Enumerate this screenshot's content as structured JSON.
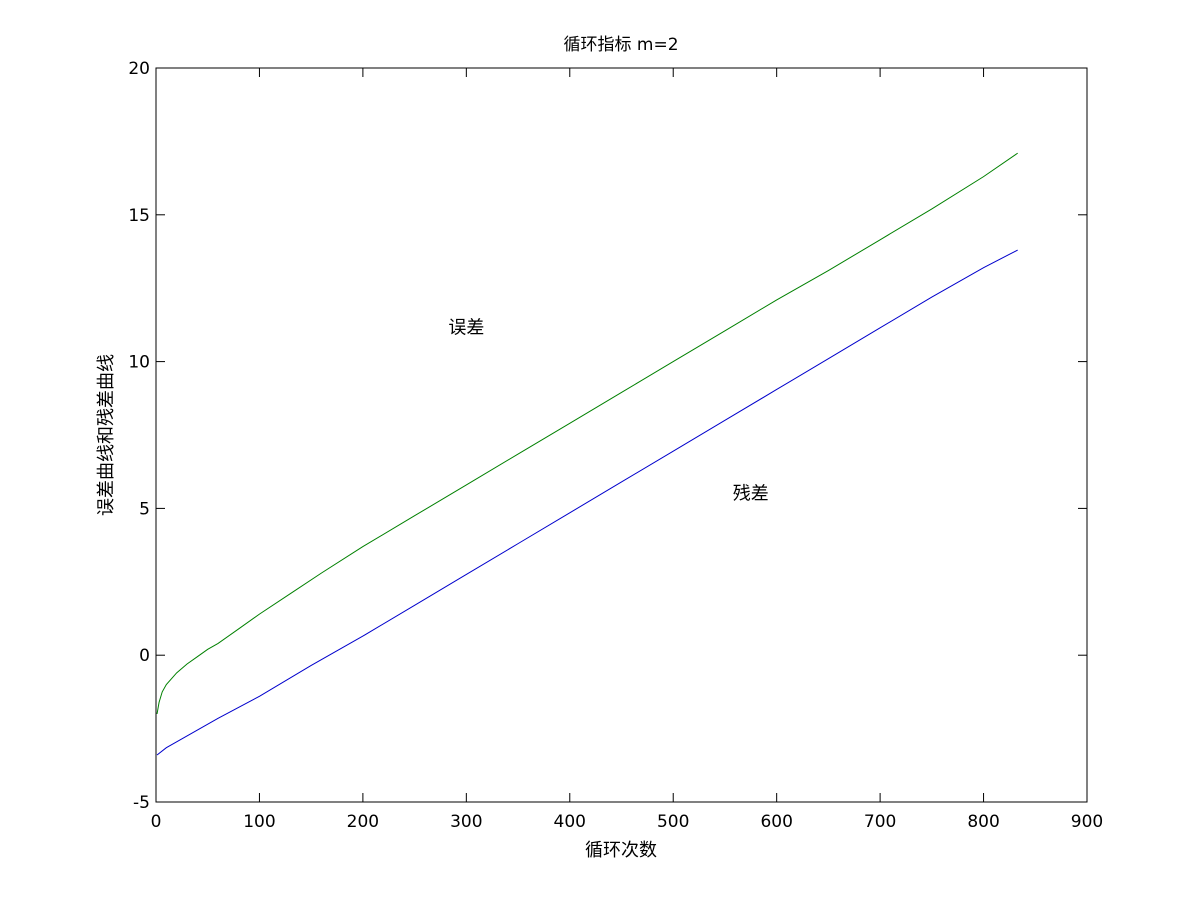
{
  "chart_data": {
    "type": "line",
    "title": "循环指标 m=2",
    "xlabel": "循环次数",
    "ylabel": "误差曲线和残差曲线",
    "xlim": [
      0,
      900
    ],
    "ylim": [
      -5,
      20
    ],
    "xticks": [
      0,
      100,
      200,
      300,
      400,
      500,
      600,
      700,
      800,
      900
    ],
    "yticks": [
      -5,
      0,
      5,
      10,
      15,
      20
    ],
    "grid": false,
    "legend": "none",
    "series": [
      {
        "color": "#008000",
        "x": [
          1,
          3,
          6,
          10,
          15,
          20,
          30,
          40,
          50,
          60,
          80,
          100,
          130,
          160,
          200,
          250,
          300,
          350,
          400,
          450,
          500,
          550,
          600,
          650,
          700,
          750,
          800,
          833
        ],
        "y": [
          -2.0,
          -1.6,
          -1.25,
          -1.0,
          -0.8,
          -0.6,
          -0.3,
          -0.05,
          0.2,
          0.4,
          0.9,
          1.4,
          2.1,
          2.8,
          3.7,
          4.75,
          5.8,
          6.85,
          7.9,
          8.95,
          10.0,
          11.05,
          12.1,
          13.1,
          14.15,
          15.2,
          16.3,
          17.1
        ]
      },
      {
        "color": "#0000cc",
        "x": [
          1,
          10,
          20,
          40,
          60,
          100,
          150,
          200,
          250,
          300,
          350,
          400,
          450,
          500,
          550,
          600,
          650,
          700,
          750,
          800,
          833
        ],
        "y": [
          -3.4,
          -3.15,
          -2.95,
          -2.55,
          -2.15,
          -1.4,
          -0.35,
          0.65,
          1.7,
          2.75,
          3.8,
          4.85,
          5.9,
          6.95,
          8.0,
          9.05,
          10.1,
          11.15,
          12.2,
          13.2,
          13.8
        ]
      }
    ],
    "annotations": [
      {
        "text": "误差",
        "x": 300,
        "y": 11.2
      },
      {
        "text": "残差",
        "x": 575,
        "y": 5.55
      }
    ]
  }
}
